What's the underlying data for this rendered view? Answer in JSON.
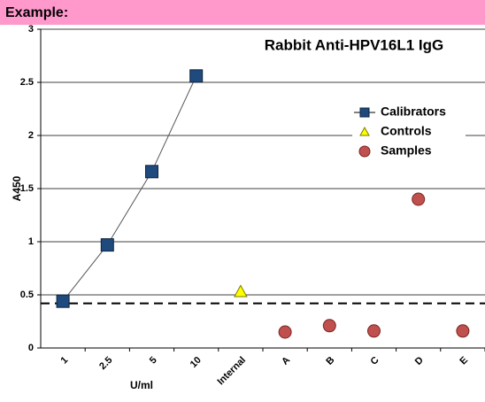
{
  "header": "Example:",
  "chart_data": {
    "type": "line",
    "title": "Rabbit Anti-HPV16L1 IgG",
    "x_label": "U/ml",
    "y_label": "A450",
    "categories": [
      "1",
      "2.5",
      "5",
      "10",
      "Internal",
      "A",
      "B",
      "C",
      "D",
      "E"
    ],
    "series": [
      {
        "name": "Calibrators",
        "color": "#1f4a7d",
        "marker": "square",
        "line": true,
        "values": [
          0.44,
          0.97,
          1.66,
          2.56,
          null,
          null,
          null,
          null,
          null,
          null
        ]
      },
      {
        "name": "Controls",
        "color": "#ffff00",
        "marker": "triangle",
        "line": false,
        "values": [
          null,
          null,
          null,
          null,
          0.53,
          null,
          null,
          null,
          null,
          null
        ]
      },
      {
        "name": "Samples",
        "color": "#c0504d",
        "marker": "circle",
        "line": false,
        "values": [
          null,
          null,
          null,
          null,
          null,
          0.15,
          0.21,
          0.16,
          1.4,
          0.16
        ]
      }
    ],
    "cutoff": 0.42,
    "ylim": [
      0,
      3
    ],
    "yticks": [
      0,
      0.5,
      1,
      1.5,
      2,
      2.5,
      3
    ],
    "grid": true,
    "legend": "upper-right"
  }
}
